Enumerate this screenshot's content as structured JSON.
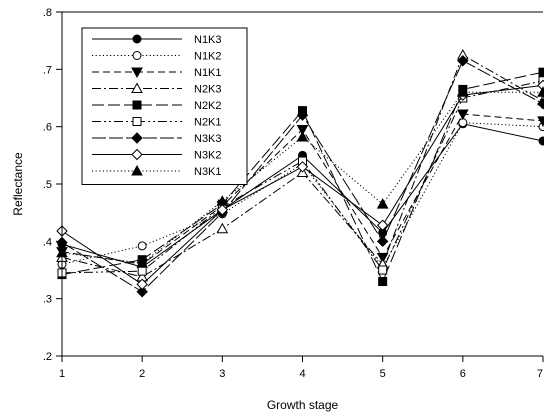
{
  "chart_data": {
    "type": "line",
    "title": "",
    "xlabel": "Growth stage",
    "ylabel": "Reflectance",
    "x": [
      1,
      2,
      3,
      4,
      5,
      6,
      7
    ],
    "xlim": [
      1,
      7
    ],
    "ylim": [
      0.2,
      0.8
    ],
    "x_ticks": [
      "1",
      "2",
      "3",
      "4",
      "5",
      "6",
      "7"
    ],
    "y_ticks": [
      ".2",
      ".3",
      ".4",
      ".5",
      ".6",
      ".7",
      ".8"
    ],
    "grid": false,
    "legend_position": "top-left",
    "series": [
      {
        "name": "N1K3",
        "dash": "solid",
        "marker": "circle-filled",
        "values": [
          0.395,
          0.355,
          0.455,
          0.55,
          0.415,
          0.605,
          0.575
        ]
      },
      {
        "name": "N1K2",
        "dash": "dotted",
        "marker": "circle-open",
        "values": [
          0.36,
          0.392,
          0.448,
          0.535,
          0.355,
          0.607,
          0.6
        ]
      },
      {
        "name": "N1K1",
        "dash": "dashed",
        "marker": "triangle-down-filled",
        "values": [
          0.382,
          0.36,
          0.462,
          0.595,
          0.372,
          0.622,
          0.61
        ]
      },
      {
        "name": "N2K3",
        "dash": "dashdot",
        "marker": "triangle-up-open",
        "values": [
          0.372,
          0.338,
          0.422,
          0.52,
          0.36,
          0.725,
          0.645
        ]
      },
      {
        "name": "N2K2",
        "dash": "longdash",
        "marker": "square-filled",
        "values": [
          0.342,
          0.368,
          0.465,
          0.628,
          0.33,
          0.665,
          0.695
        ]
      },
      {
        "name": "N2K1",
        "dash": "dashdotdot",
        "marker": "square-open",
        "values": [
          0.345,
          0.348,
          0.46,
          0.54,
          0.35,
          0.65,
          0.68
        ]
      },
      {
        "name": "N3K3",
        "dash": "longdash2",
        "marker": "diamond-filled",
        "values": [
          0.398,
          0.312,
          0.45,
          0.62,
          0.4,
          0.715,
          0.64
        ]
      },
      {
        "name": "N3K2",
        "dash": "solid",
        "marker": "diamond-open",
        "values": [
          0.418,
          0.325,
          0.455,
          0.53,
          0.428,
          0.655,
          0.672
        ]
      },
      {
        "name": "N3K1",
        "dash": "dotted",
        "marker": "triangle-up-filled",
        "values": [
          0.38,
          0.362,
          0.47,
          0.582,
          0.465,
          0.66,
          0.66
        ]
      }
    ]
  }
}
